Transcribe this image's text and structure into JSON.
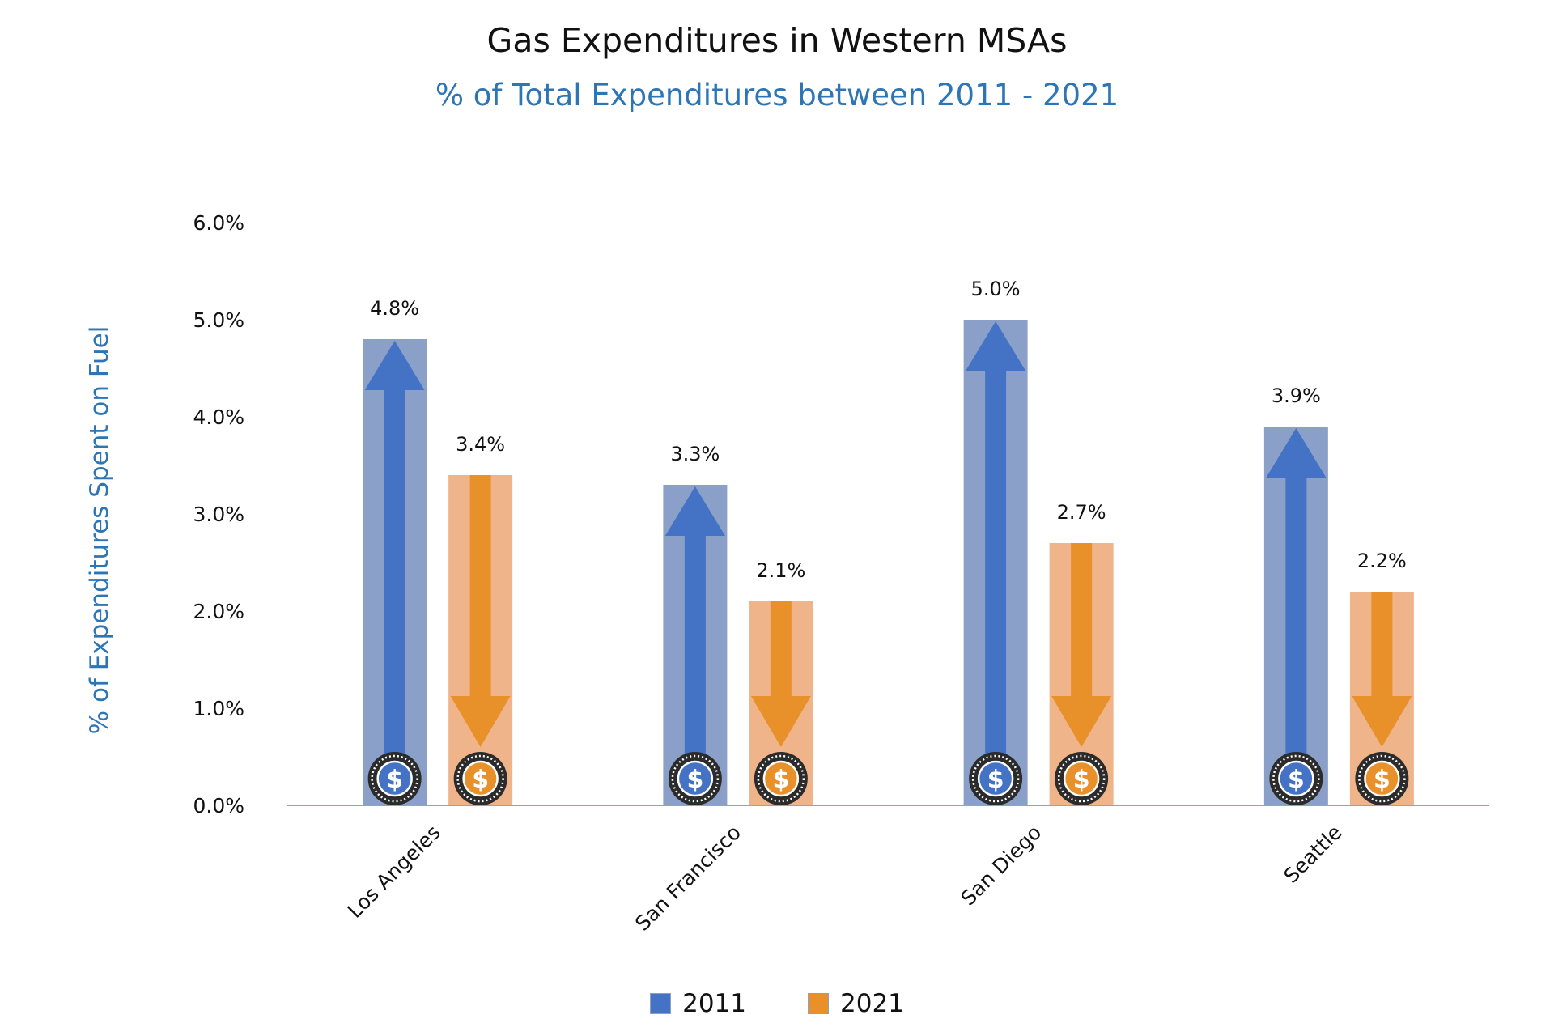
{
  "title": "Gas Expenditures in Western MSAs",
  "subtitle": "% of Total Expenditures between 2011 - 2021",
  "chart_data": {
    "type": "bar",
    "title": "Gas Expenditures in Western MSAs",
    "subtitle": "% of Total Expenditures between 2011 - 2021",
    "xlabel": "",
    "ylabel": "% of Expenditures Spent on Fuel",
    "categories": [
      "Los Angeles",
      "San Francisco",
      "San Diego",
      "Seattle"
    ],
    "series": [
      {
        "name": "2011",
        "values": [
          4.8,
          3.3,
          5.0,
          3.9
        ],
        "labels": [
          "4.8%",
          "3.3%",
          "5.0%",
          "3.9%"
        ],
        "color": "#4472c4",
        "bar_color": "#8aa0c8",
        "arrow": "up"
      },
      {
        "name": "2021",
        "values": [
          3.4,
          2.1,
          2.7,
          2.2
        ],
        "labels": [
          "3.4%",
          "2.1%",
          "2.7%",
          "2.2%"
        ],
        "color": "#e8902a",
        "bar_color": "#f0b48a",
        "arrow": "down"
      }
    ],
    "ylim": [
      0,
      6
    ],
    "yticks": [
      "0.0%",
      "1.0%",
      "2.0%",
      "3.0%",
      "4.0%",
      "5.0%",
      "6.0%"
    ],
    "grid": false,
    "legend": "bottom-center",
    "icon": "dollar-coin-icon",
    "accent_color": "#2e75b6"
  }
}
